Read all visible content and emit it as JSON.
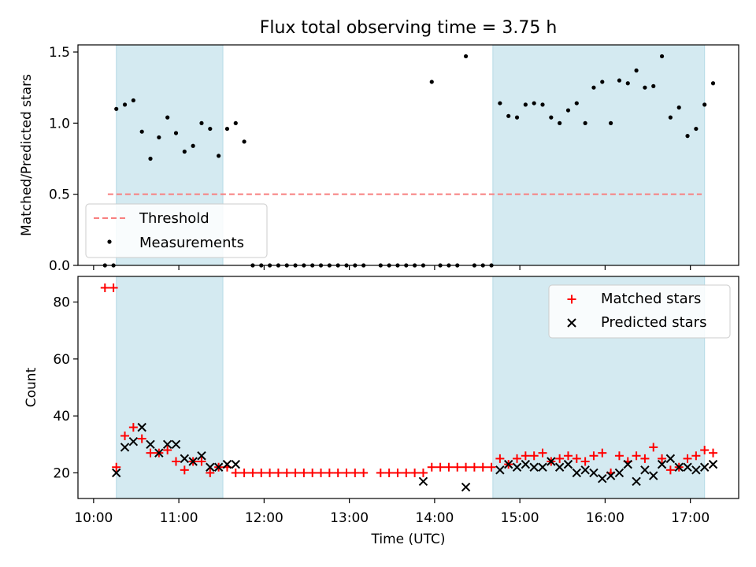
{
  "chart_data": [
    {
      "type": "scatter",
      "panel": "top",
      "title": "Flux total observing time = 3.75 h",
      "xlabel": "",
      "ylabel": "Matched/Predicted stars",
      "ylim": [
        0,
        1.55
      ],
      "xlim": [
        "09:49",
        "17:34"
      ],
      "yticks": [
        "0.0",
        "0.5",
        "1.0",
        "1.5"
      ],
      "grid": false,
      "legend_position": "lower-left",
      "shaded_intervals": [
        [
          "10:16",
          "11:31"
        ],
        [
          "14:41",
          "17:10"
        ]
      ],
      "threshold": {
        "name": "Threshold",
        "y": 0.5,
        "x_start": "10:10",
        "x_end": "17:08",
        "color": "#f87f7f",
        "style": "dashed"
      },
      "series": [
        {
          "name": "Measurements",
          "color": "#000000",
          "x": [
            "10:08",
            "10:14",
            "10:16",
            "10:22",
            "10:28",
            "10:34",
            "10:40",
            "10:46",
            "10:52",
            "10:58",
            "11:04",
            "11:10",
            "11:16",
            "11:22",
            "11:28",
            "11:34",
            "11:40",
            "11:46",
            "11:52",
            "11:58",
            "12:04",
            "12:10",
            "12:16",
            "12:22",
            "12:28",
            "12:34",
            "12:40",
            "12:46",
            "12:52",
            "12:58",
            "13:04",
            "13:10",
            "13:22",
            "13:28",
            "13:34",
            "13:40",
            "13:46",
            "13:52",
            "13:58",
            "14:04",
            "14:10",
            "14:16",
            "14:22",
            "14:28",
            "14:34",
            "14:40",
            "14:46",
            "14:52",
            "14:58",
            "15:04",
            "15:10",
            "15:16",
            "15:22",
            "15:28",
            "15:34",
            "15:40",
            "15:46",
            "15:52",
            "15:58",
            "16:04",
            "16:10",
            "16:16",
            "16:22",
            "16:28",
            "16:34",
            "16:40",
            "16:46",
            "16:52",
            "16:58",
            "17:04",
            "17:10",
            "17:16"
          ],
          "y": [
            0,
            0,
            1.1,
            1.13,
            1.16,
            0.94,
            0.75,
            0.9,
            1.04,
            0.93,
            0.8,
            0.84,
            1.0,
            0.96,
            0.77,
            0.96,
            1.0,
            0.87,
            0,
            0,
            0,
            0,
            0,
            0,
            0,
            0,
            0,
            0,
            0,
            0,
            0,
            0,
            0,
            0,
            0,
            0,
            0,
            0,
            1.29,
            0,
            0,
            0,
            1.47,
            0,
            0,
            0,
            1.14,
            1.05,
            1.04,
            1.13,
            1.14,
            1.13,
            1.04,
            1.0,
            1.09,
            1.14,
            1.0,
            1.25,
            1.29,
            1.0,
            1.3,
            1.28,
            1.37,
            1.25,
            1.26,
            1.47,
            1.04,
            1.11,
            0.91,
            0.96,
            1.13,
            1.28
          ]
        }
      ]
    },
    {
      "type": "scatter",
      "panel": "bottom",
      "xlabel": "Time (UTC)",
      "ylabel": "Count",
      "ylim": [
        11,
        89
      ],
      "xlim": [
        "09:49",
        "17:34"
      ],
      "xticks": [
        "10:00",
        "11:00",
        "12:00",
        "13:00",
        "14:00",
        "15:00",
        "16:00",
        "17:00"
      ],
      "yticks": [
        "20",
        "40",
        "60",
        "80"
      ],
      "grid": false,
      "legend_position": "upper-right",
      "shaded_intervals": [
        [
          "10:16",
          "11:31"
        ],
        [
          "14:41",
          "17:10"
        ]
      ],
      "series": [
        {
          "name": "Matched stars",
          "marker": "plus",
          "color": "#ff0000",
          "x": [
            "10:08",
            "10:14",
            "10:16",
            "10:22",
            "10:28",
            "10:34",
            "10:40",
            "10:46",
            "10:52",
            "10:58",
            "11:04",
            "11:10",
            "11:16",
            "11:22",
            "11:28",
            "11:34",
            "11:40",
            "11:46",
            "11:52",
            "11:58",
            "12:04",
            "12:10",
            "12:16",
            "12:22",
            "12:28",
            "12:34",
            "12:40",
            "12:46",
            "12:52",
            "12:58",
            "13:04",
            "13:10",
            "13:22",
            "13:28",
            "13:34",
            "13:40",
            "13:46",
            "13:52",
            "13:58",
            "14:04",
            "14:10",
            "14:16",
            "14:22",
            "14:28",
            "14:34",
            "14:40",
            "14:46",
            "14:52",
            "14:58",
            "15:04",
            "15:10",
            "15:16",
            "15:22",
            "15:28",
            "15:34",
            "15:40",
            "15:46",
            "15:52",
            "15:58",
            "16:04",
            "16:10",
            "16:16",
            "16:22",
            "16:28",
            "16:34",
            "16:40",
            "16:46",
            "16:52",
            "16:58",
            "17:04",
            "17:10",
            "17:16"
          ],
          "y": [
            85,
            85,
            22,
            33,
            36,
            32,
            27,
            27,
            28,
            24,
            21,
            24,
            24,
            20,
            22,
            22,
            20,
            20,
            20,
            20,
            20,
            20,
            20,
            20,
            20,
            20,
            20,
            20,
            20,
            20,
            20,
            20,
            20,
            20,
            20,
            20,
            20,
            20,
            22,
            22,
            22,
            22,
            22,
            22,
            22,
            22,
            25,
            23,
            25,
            26,
            26,
            27,
            24,
            25,
            26,
            25,
            24,
            26,
            27,
            20,
            26,
            24,
            26,
            25,
            29,
            25,
            21,
            22,
            25,
            26,
            28,
            27
          ]
        },
        {
          "name": "Predicted stars",
          "marker": "x",
          "color": "#000000",
          "x": [
            "10:16",
            "10:22",
            "10:28",
            "10:34",
            "10:40",
            "10:46",
            "10:52",
            "10:58",
            "11:04",
            "11:10",
            "11:16",
            "11:22",
            "11:28",
            "11:34",
            "11:40",
            "13:52",
            "14:22",
            "14:46",
            "14:52",
            "14:58",
            "15:04",
            "15:10",
            "15:16",
            "15:22",
            "15:28",
            "15:34",
            "15:40",
            "15:46",
            "15:52",
            "15:58",
            "16:04",
            "16:10",
            "16:16",
            "16:22",
            "16:28",
            "16:34",
            "16:40",
            "16:46",
            "16:52",
            "16:58",
            "17:04",
            "17:10",
            "17:16"
          ],
          "y": [
            20,
            29,
            31,
            36,
            30,
            27,
            30,
            30,
            25,
            24,
            26,
            22,
            22,
            23,
            23,
            17,
            15,
            21,
            23,
            22,
            23,
            22,
            22,
            24,
            22,
            23,
            20,
            21,
            20,
            18,
            19,
            20,
            23,
            17,
            21,
            19,
            23,
            25,
            22,
            22,
            21,
            22,
            23
          ]
        }
      ]
    }
  ]
}
